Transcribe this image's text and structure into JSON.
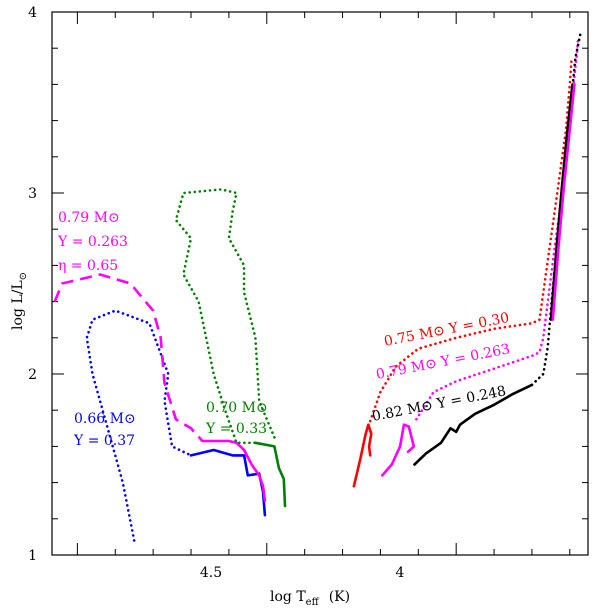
{
  "chart_data": {
    "type": "line",
    "title": "",
    "xlabel_main": "log T",
    "xlabel_sub": "eff",
    "xlabel_unit": "(K)",
    "ylabel_main": "log L/L",
    "ylabel_sub": "⊙",
    "xlim": [
      5.067,
      3.652
    ],
    "ylim": [
      1.0,
      4.0
    ],
    "x_ticks": [
      {
        "value": 4.5,
        "label": "4.5"
      },
      {
        "value": 4.0,
        "label": "4"
      }
    ],
    "y_ticks": [
      {
        "value": 1,
        "label": "1"
      },
      {
        "value": 2,
        "label": "2"
      },
      {
        "value": 3,
        "label": "3"
      },
      {
        "value": 4,
        "label": "4"
      }
    ],
    "colors": {
      "red": "#ff0000",
      "magenta": "#ff00ff",
      "black": "#000000",
      "blue": "#0000ff",
      "green": "#008000"
    },
    "series": [
      {
        "name": "0.75 Msun Y=0.30 RGB",
        "color": "red",
        "style": "solid",
        "points": [
          [
            4.27,
            1.38
          ],
          [
            4.252,
            1.54
          ],
          [
            4.24,
            1.66
          ],
          [
            4.232,
            1.72
          ],
          [
            4.224,
            1.67
          ],
          [
            4.23,
            1.6
          ],
          [
            4.227,
            1.55
          ]
        ]
      },
      {
        "name": "0.75 Msun Y=0.30 RGB dotted",
        "color": "red",
        "style": "dotted",
        "points": [
          [
            4.227,
            1.74
          ],
          [
            4.2,
            1.9
          ],
          [
            4.16,
            2.04
          ],
          [
            4.1,
            2.14
          ],
          [
            4.0,
            2.2
          ],
          [
            3.9,
            2.25
          ],
          [
            3.8,
            2.28
          ],
          [
            3.78,
            2.3
          ],
          [
            3.77,
            2.45
          ],
          [
            3.75,
            2.75
          ],
          [
            3.73,
            3.05
          ],
          [
            3.71,
            3.35
          ],
          [
            3.7,
            3.6
          ],
          [
            3.695,
            3.75
          ]
        ]
      },
      {
        "name": "0.79 Msun Y=0.263 RGB",
        "color": "magenta",
        "style": "solid",
        "points": [
          [
            4.195,
            1.44
          ],
          [
            4.17,
            1.5
          ],
          [
            4.148,
            1.6
          ],
          [
            4.138,
            1.72
          ],
          [
            4.125,
            1.71
          ],
          [
            4.112,
            1.6
          ],
          [
            4.127,
            1.57
          ]
        ]
      },
      {
        "name": "0.79 Msun Y=0.263 RGB dotted",
        "color": "magenta",
        "style": "dotted",
        "points": [
          [
            4.105,
            1.75
          ],
          [
            4.06,
            1.9
          ],
          [
            4.0,
            1.96
          ],
          [
            3.9,
            2.03
          ],
          [
            3.8,
            2.1
          ],
          [
            3.78,
            2.12
          ],
          [
            3.77,
            2.2
          ],
          [
            3.758,
            2.4
          ],
          [
            3.74,
            2.7
          ],
          [
            3.72,
            3.0
          ],
          [
            3.705,
            3.3
          ],
          [
            3.69,
            3.6
          ],
          [
            3.68,
            3.8
          ],
          [
            3.678,
            3.86
          ]
        ]
      },
      {
        "name": "0.82 Msun Y=0.248 RGB",
        "color": "black",
        "style": "solid",
        "points": [
          [
            4.11,
            1.5
          ],
          [
            4.08,
            1.56
          ],
          [
            4.04,
            1.62
          ],
          [
            4.015,
            1.7
          ],
          [
            4.0,
            1.68
          ],
          [
            3.99,
            1.72
          ],
          [
            3.95,
            1.78
          ],
          [
            3.9,
            1.83
          ],
          [
            3.85,
            1.89
          ],
          [
            3.8,
            1.94
          ]
        ]
      },
      {
        "name": "0.82 Msun Y=0.248 RGB dotted",
        "color": "black",
        "style": "dotted",
        "points": [
          [
            3.8,
            1.94
          ],
          [
            3.77,
            2.0
          ],
          [
            3.758,
            2.15
          ],
          [
            3.748,
            2.4
          ],
          [
            3.73,
            2.8
          ],
          [
            3.712,
            3.2
          ],
          [
            3.697,
            3.5
          ],
          [
            3.685,
            3.75
          ],
          [
            3.67,
            3.9
          ]
        ]
      },
      {
        "name": "0.82 Msun giant branch solid",
        "color": "black",
        "style": "solid",
        "points": [
          [
            3.75,
            2.3
          ],
          [
            3.735,
            2.7
          ],
          [
            3.72,
            3.05
          ],
          [
            3.706,
            3.35
          ],
          [
            3.693,
            3.6
          ]
        ]
      },
      {
        "name": "0.79 Msun giant branch solid",
        "color": "magenta",
        "style": "solid",
        "points": [
          [
            3.745,
            2.3
          ],
          [
            3.73,
            2.7
          ],
          [
            3.715,
            3.05
          ],
          [
            3.7,
            3.35
          ],
          [
            3.688,
            3.6
          ]
        ]
      },
      {
        "name": "0.66 Msun Y=0.37 dotted",
        "color": "blue",
        "style": "dotted",
        "points": [
          [
            4.85,
            1.08
          ],
          [
            4.88,
            1.4
          ],
          [
            4.92,
            1.7
          ],
          [
            4.96,
            2.0
          ],
          [
            4.975,
            2.2
          ],
          [
            4.96,
            2.3
          ],
          [
            4.9,
            2.35
          ],
          [
            4.81,
            2.28
          ],
          [
            4.76,
            2.0
          ],
          [
            4.77,
            1.85
          ],
          [
            4.75,
            1.6
          ],
          [
            4.7,
            1.55
          ]
        ]
      },
      {
        "name": "0.66 Msun Y=0.37 solid",
        "color": "blue",
        "style": "solid",
        "points": [
          [
            4.7,
            1.55
          ],
          [
            4.64,
            1.58
          ],
          [
            4.59,
            1.55
          ],
          [
            4.56,
            1.55
          ],
          [
            4.55,
            1.44
          ],
          [
            4.52,
            1.45
          ],
          [
            4.51,
            1.35
          ],
          [
            4.505,
            1.22
          ]
        ]
      },
      {
        "name": "0.79 Msun Y=0.263 eta=0.65 dashed",
        "color": "magenta",
        "style": "dashed",
        "points": [
          [
            5.06,
            2.4
          ],
          [
            5.04,
            2.5
          ],
          [
            4.94,
            2.55
          ],
          [
            4.86,
            2.5
          ],
          [
            4.8,
            2.35
          ],
          [
            4.78,
            2.2
          ],
          [
            4.77,
            1.95
          ],
          [
            4.74,
            1.75
          ],
          [
            4.7,
            1.7
          ],
          [
            4.67,
            1.63
          ]
        ]
      },
      {
        "name": "0.79 Msun Y=0.263 eta=0.65 solid",
        "color": "magenta",
        "style": "solid",
        "points": [
          [
            4.67,
            1.63
          ],
          [
            4.6,
            1.63
          ],
          [
            4.58,
            1.62
          ],
          [
            4.56,
            1.58
          ],
          [
            4.54,
            1.5
          ],
          [
            4.52,
            1.44
          ],
          [
            4.51,
            1.38
          ],
          [
            4.505,
            1.3
          ]
        ]
      },
      {
        "name": "0.70 Msun Y=0.33 dotted",
        "color": "green",
        "style": "dotted",
        "points": [
          [
            4.48,
            1.65
          ],
          [
            4.52,
            1.85
          ],
          [
            4.53,
            2.2
          ],
          [
            4.56,
            2.45
          ],
          [
            4.56,
            2.6
          ],
          [
            4.6,
            2.75
          ],
          [
            4.59,
            2.9
          ],
          [
            4.58,
            3.0
          ],
          [
            4.62,
            3.02
          ],
          [
            4.72,
            3.0
          ],
          [
            4.74,
            2.85
          ],
          [
            4.7,
            2.75
          ],
          [
            4.72,
            2.55
          ],
          [
            4.68,
            2.4
          ],
          [
            4.64,
            2.0
          ],
          [
            4.61,
            1.8
          ],
          [
            4.58,
            1.62
          ],
          [
            4.53,
            1.62
          ]
        ]
      },
      {
        "name": "0.70 Msun Y=0.33 solid",
        "color": "green",
        "style": "solid",
        "points": [
          [
            4.53,
            1.62
          ],
          [
            4.48,
            1.6
          ],
          [
            4.468,
            1.48
          ],
          [
            4.455,
            1.42
          ],
          [
            4.452,
            1.27
          ]
        ]
      }
    ],
    "annotations": [
      {
        "line1": "0.79 M⊙",
        "line2": "Y = 0.263",
        "line3": "η = 0.65",
        "color": "magenta"
      },
      {
        "line1": "0.66 M⊙",
        "line2": "Y = 0.37",
        "color": "blue"
      },
      {
        "line1": "0.70 M⊙",
        "line2": "Y = 0.33",
        "color": "green"
      },
      {
        "text": "0.75 M⊙ Y = 0.30",
        "color": "red"
      },
      {
        "text": "0.79 M⊙ Y = 0.263",
        "color": "magenta"
      },
      {
        "text": "0.82 M⊙ Y = 0.248",
        "color": "black"
      }
    ]
  }
}
